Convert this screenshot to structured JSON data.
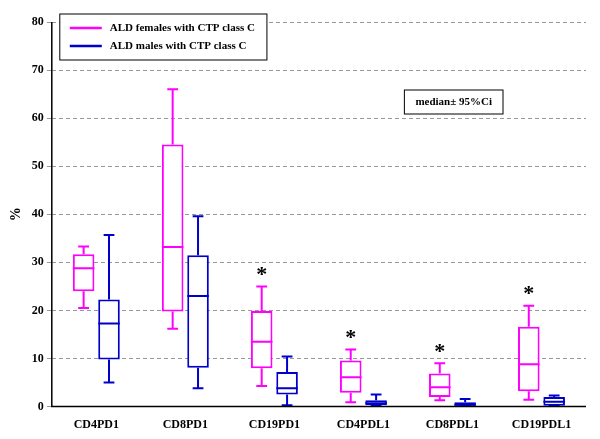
{
  "chart_data": {
    "type": "boxplot",
    "y_label": "%",
    "categories": [
      "CD4PD1",
      "CD8PD1",
      "CD19PD1",
      "CD4PDL1",
      "CD8PDL1",
      "CD19PDL1"
    ],
    "series": [
      {
        "name": "ALD females with CTP class C",
        "color": "#ff00ff",
        "values": [
          {
            "min": 20.5,
            "q1": 24.0,
            "median": 28.8,
            "q3": 31.7,
            "max": 33.3
          },
          {
            "min": 16.2,
            "q1": 19.8,
            "median": 33.2,
            "q3": 54.5,
            "max": 66.0
          },
          {
            "min": 4.3,
            "q1": 8.0,
            "median": 13.5,
            "q3": 19.9,
            "max": 25.0
          },
          {
            "min": 0.9,
            "q1": 2.9,
            "median": 6.1,
            "q3": 9.6,
            "max": 11.9
          },
          {
            "min": 1.3,
            "q1": 2.0,
            "median": 4.0,
            "q3": 6.9,
            "max": 9.0
          },
          {
            "min": 1.4,
            "q1": 3.2,
            "median": 8.8,
            "q3": 16.6,
            "max": 21.0
          }
        ]
      },
      {
        "name": "ALD males with CTP class C",
        "color": "#0000cc",
        "values": [
          {
            "min": 5.0,
            "q1": 9.8,
            "median": 17.3,
            "q3": 22.3,
            "max": 35.7
          },
          {
            "min": 3.8,
            "q1": 8.1,
            "median": 23.0,
            "q3": 31.5,
            "max": 39.6
          },
          {
            "min": 0.3,
            "q1": 2.5,
            "median": 3.8,
            "q3": 7.2,
            "max": 10.4
          },
          {
            "min": 0.1,
            "q1": 0.3,
            "median": 0.7,
            "q3": 1.3,
            "max": 2.5
          },
          {
            "min": 0.1,
            "q1": 0.2,
            "median": 0.4,
            "q3": 0.9,
            "max": 1.6
          },
          {
            "min": 0.1,
            "q1": 0.2,
            "median": 1.0,
            "q3": 2.0,
            "max": 2.3
          }
        ]
      }
    ],
    "annotations": [
      {
        "text": "median± 95%Ci"
      },
      {
        "text": "*",
        "category": "CD19PD1"
      },
      {
        "text": "*",
        "category": "CD4PDL1"
      },
      {
        "text": "*",
        "category": "CD8PDL1"
      },
      {
        "text": "*",
        "category": "CD19PDL1"
      }
    ],
    "ylim": [
      0,
      80
    ],
    "yticks": [
      0,
      10,
      20,
      30,
      40,
      50,
      60,
      70,
      80
    ],
    "grid": true,
    "legend": "upper left"
  }
}
